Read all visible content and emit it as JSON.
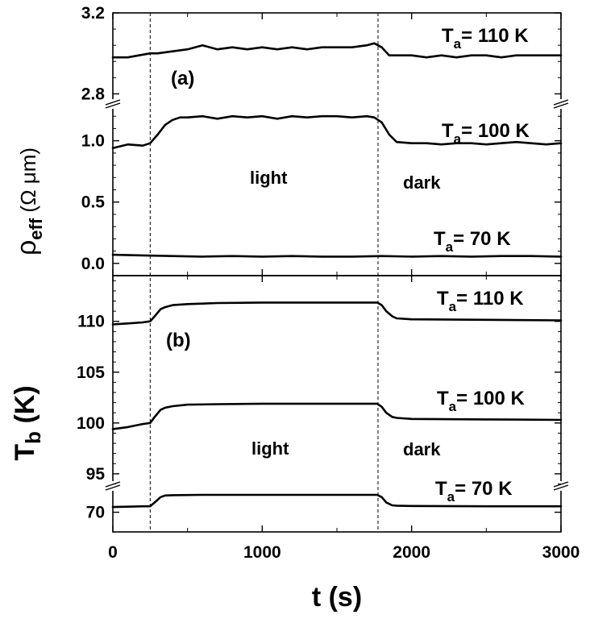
{
  "chart_data": [
    {
      "id": "a",
      "type": "line",
      "panel_label": "(a)",
      "ylabel": {
        "main": "ρ",
        "sub": "eff",
        "unit": "(Ω μm)"
      },
      "x_range": [
        0,
        3000
      ],
      "y_axis_break": true,
      "segments": [
        {
          "ylim": [
            2.75,
            3.2
          ],
          "ticks": [
            2.8,
            3.2
          ],
          "tick_labels": [
            "2.8",
            "3.2"
          ]
        },
        {
          "ylim": [
            -0.1,
            1.3
          ],
          "ticks": [
            0.0,
            0.5,
            1.0
          ],
          "tick_labels": [
            "0.0",
            "0.5",
            "1.0"
          ]
        }
      ],
      "series": [
        {
          "name": "T",
          "name_sub": "a",
          "name_rest": "= 110 K",
          "segment": 0,
          "x": [
            0,
            100,
            250,
            300,
            400,
            500,
            600,
            700,
            800,
            900,
            1000,
            1100,
            1200,
            1300,
            1400,
            1500,
            1600,
            1700,
            1750,
            1800,
            1850,
            1900,
            2000,
            2100,
            2200,
            2300,
            2400,
            2500,
            2600,
            2700,
            2800,
            2900,
            3000
          ],
          "y": [
            2.98,
            2.98,
            3.0,
            3.0,
            3.01,
            3.02,
            3.04,
            3.02,
            3.03,
            3.02,
            3.03,
            3.02,
            3.03,
            3.02,
            3.03,
            3.03,
            3.03,
            3.04,
            3.05,
            3.03,
            2.99,
            2.99,
            2.99,
            2.98,
            2.99,
            2.98,
            2.99,
            2.99,
            2.98,
            2.99,
            2.99,
            2.99,
            2.99
          ]
        },
        {
          "name": "T",
          "name_sub": "a",
          "name_rest": "= 100 K",
          "segment": 1,
          "x": [
            0,
            100,
            200,
            250,
            300,
            350,
            400,
            450,
            500,
            600,
            700,
            800,
            900,
            1000,
            1100,
            1200,
            1300,
            1400,
            1500,
            1600,
            1700,
            1750,
            1800,
            1850,
            1900,
            2000,
            2100,
            2200,
            2300,
            2400,
            2500,
            2600,
            2700,
            2800,
            2900,
            3000
          ],
          "y": [
            0.94,
            0.97,
            0.96,
            0.98,
            1.05,
            1.13,
            1.17,
            1.19,
            1.19,
            1.2,
            1.18,
            1.2,
            1.19,
            1.2,
            1.18,
            1.2,
            1.19,
            1.2,
            1.2,
            1.19,
            1.2,
            1.19,
            1.15,
            1.05,
            0.99,
            0.98,
            0.98,
            0.97,
            0.98,
            0.98,
            0.97,
            0.98,
            0.99,
            0.98,
            0.97,
            0.98
          ]
        },
        {
          "name": "T",
          "name_sub": "a",
          "name_rest": "= 70 K",
          "segment": 1,
          "x": [
            0,
            200,
            400,
            600,
            800,
            1000,
            1200,
            1400,
            1600,
            1800,
            2000,
            2200,
            2400,
            2600,
            2800,
            3000
          ],
          "y": [
            0.07,
            0.065,
            0.06,
            0.055,
            0.06,
            0.055,
            0.06,
            0.055,
            0.055,
            0.06,
            0.055,
            0.06,
            0.055,
            0.06,
            0.06,
            0.055
          ]
        }
      ],
      "annotations": [
        "light",
        "dark"
      ]
    },
    {
      "id": "b",
      "type": "line",
      "panel_label": "(b)",
      "ylabel": {
        "main": "T",
        "sub": "b",
        "unit": "(K)"
      },
      "xlabel": "t (s)",
      "x_range": [
        0,
        3000
      ],
      "x_ticks": [
        0,
        1000,
        2000,
        3000
      ],
      "x_tick_labels": [
        "0",
        "1000",
        "2000",
        "3000"
      ],
      "y_axis_break": true,
      "segments": [
        {
          "ylim": [
            93.8,
            114.5
          ],
          "ticks": [
            95,
            100,
            105,
            110
          ],
          "tick_labels": [
            "95",
            "100",
            "105",
            "110"
          ]
        },
        {
          "ylim": [
            67.0,
            74.0
          ],
          "ticks": [
            70
          ],
          "tick_labels": [
            "70"
          ]
        }
      ],
      "series": [
        {
          "name": "T",
          "name_sub": "a",
          "name_rest": "= 110 K",
          "segment": 0,
          "x": [
            0,
            100,
            200,
            250,
            280,
            320,
            350,
            400,
            500,
            700,
            1000,
            1300,
            1600,
            1770,
            1800,
            1830,
            1870,
            1900,
            2000,
            2500,
            3000
          ],
          "y": [
            109.7,
            109.8,
            109.9,
            110.0,
            110.5,
            111.2,
            111.4,
            111.6,
            111.7,
            111.8,
            111.85,
            111.85,
            111.85,
            111.85,
            111.6,
            111.0,
            110.5,
            110.3,
            110.2,
            110.15,
            110.1
          ]
        },
        {
          "name": "T",
          "name_sub": "a",
          "name_rest": "= 100 K",
          "segment": 0,
          "x": [
            0,
            100,
            200,
            250,
            280,
            320,
            350,
            400,
            500,
            700,
            1000,
            1300,
            1600,
            1770,
            1800,
            1830,
            1870,
            1900,
            2000,
            2500,
            3000
          ],
          "y": [
            99.4,
            99.6,
            99.9,
            100.0,
            100.6,
            101.3,
            101.5,
            101.65,
            101.8,
            101.85,
            101.9,
            101.9,
            101.9,
            101.9,
            101.6,
            101.0,
            100.6,
            100.5,
            100.4,
            100.35,
            100.3
          ]
        },
        {
          "name": "T",
          "name_sub": "a",
          "name_rest": "= 70 K",
          "segment": 1,
          "x": [
            0,
            100,
            200,
            250,
            280,
            320,
            350,
            400,
            600,
            1000,
            1400,
            1770,
            1800,
            1830,
            1870,
            1900,
            2000,
            2500,
            3000
          ],
          "y": [
            70.8,
            70.85,
            70.9,
            70.9,
            71.5,
            72.3,
            72.55,
            72.6,
            72.65,
            72.65,
            72.65,
            72.65,
            72.3,
            71.5,
            71.05,
            71.0,
            70.95,
            70.9,
            70.9
          ]
        }
      ],
      "annotations": [
        "light",
        "dark"
      ]
    }
  ],
  "events": {
    "vertical_markers_x": [
      250,
      1775
    ]
  }
}
